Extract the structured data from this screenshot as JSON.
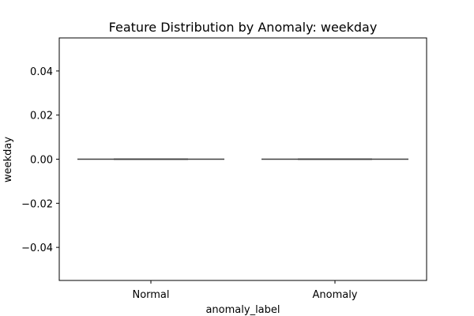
{
  "chart_data": {
    "type": "box",
    "title": "Feature Distribution by Anomaly: weekday",
    "xlabel": "anomaly_label",
    "ylabel": "weekday",
    "categories": [
      "Normal",
      "Anomaly"
    ],
    "series": [
      {
        "category": "Normal",
        "min": 0.0,
        "q1": 0.0,
        "median": 0.0,
        "q3": 0.0,
        "max": 0.0
      },
      {
        "category": "Anomaly",
        "min": 0.0,
        "q1": 0.0,
        "median": 0.0,
        "q3": 0.0,
        "max": 0.0
      }
    ],
    "yticks": [
      0.04,
      0.02,
      0.0,
      -0.02,
      -0.04
    ],
    "ytick_labels": [
      "0.04",
      "0.02",
      "0.00",
      "−0.02",
      "−0.04"
    ],
    "ylim": [
      -0.055,
      0.055
    ],
    "grid": false,
    "box_line_color": "#3f3f3f",
    "axis_color": "#000000"
  }
}
